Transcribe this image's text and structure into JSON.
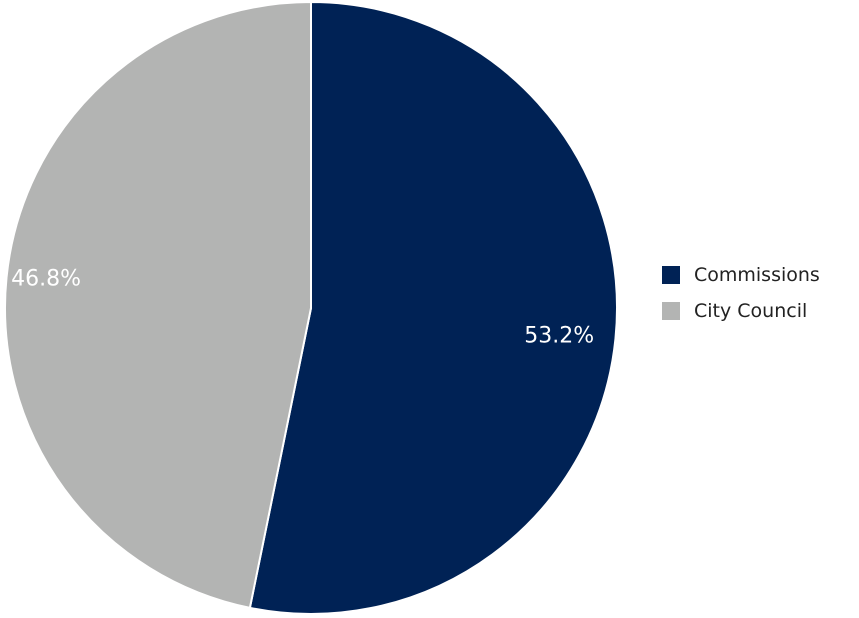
{
  "chart_data": {
    "type": "pie",
    "slices": [
      {
        "label": "Commissions",
        "value": 53.2,
        "display": "53.2%",
        "color": "#002255"
      },
      {
        "label": "City Council",
        "value": 46.8,
        "display": "46.8%",
        "color": "#b3b4b3"
      }
    ],
    "start_angle": "12 o'clock",
    "direction": "clockwise",
    "legend_position": "right"
  }
}
